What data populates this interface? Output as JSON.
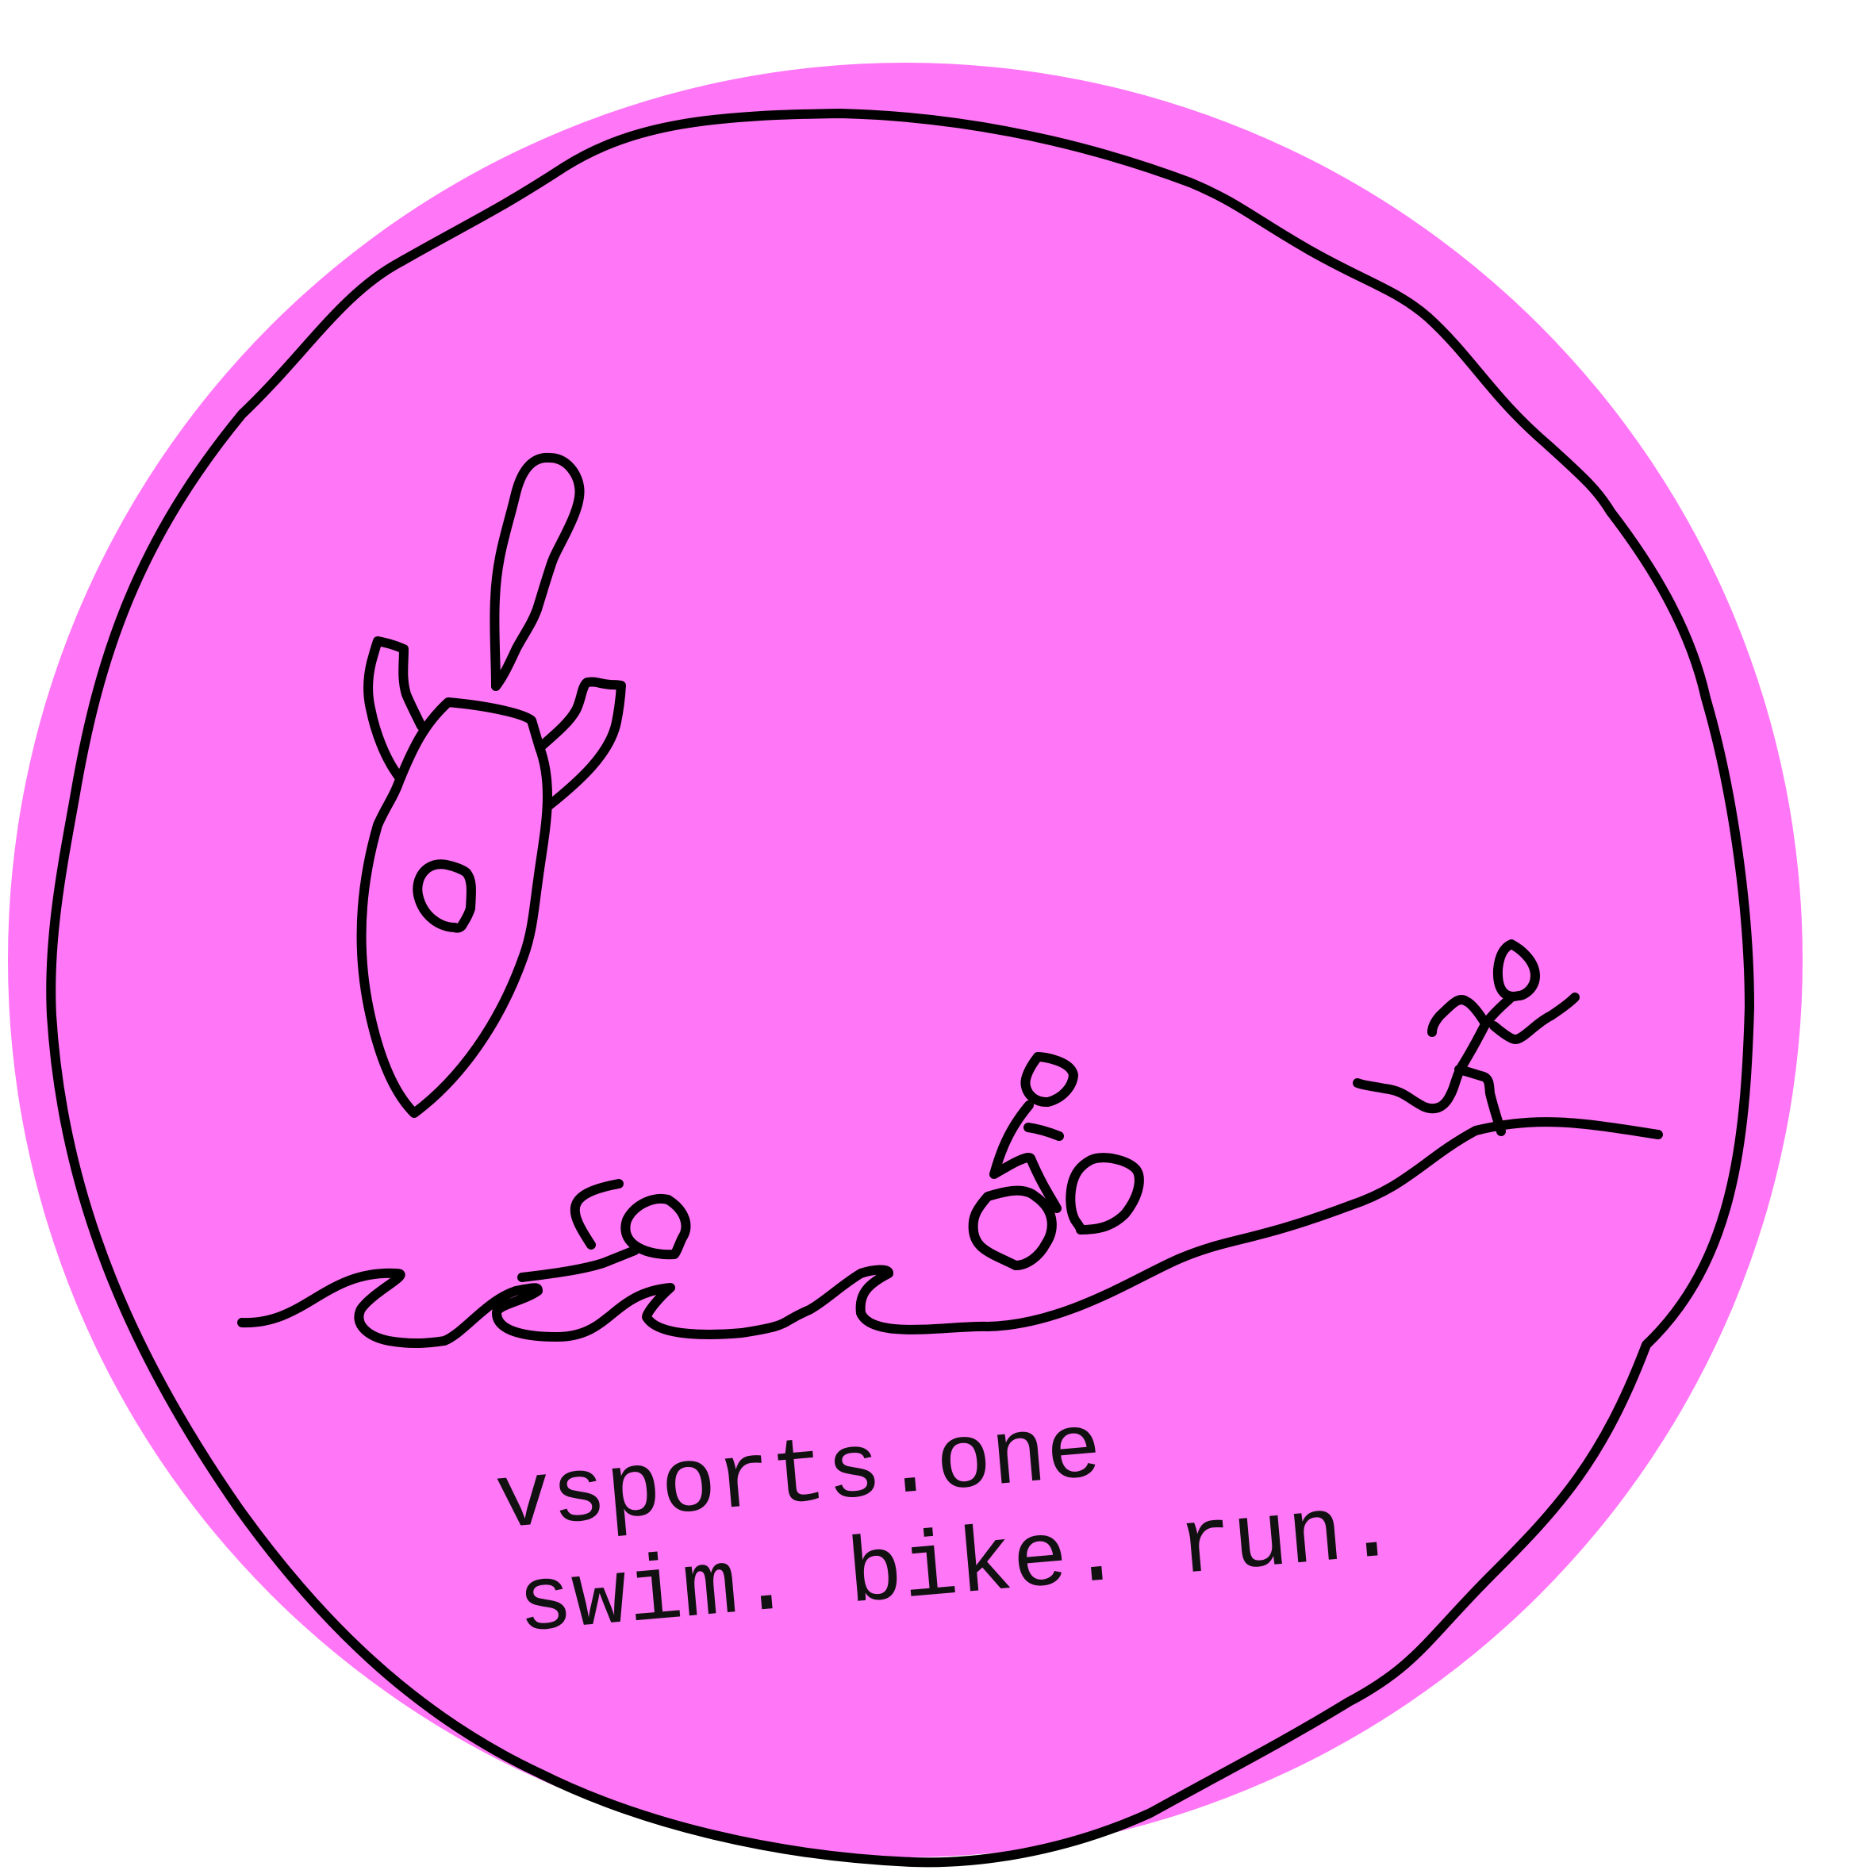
{
  "logo": {
    "domain_text": "vsports.one",
    "tagline": "swim. bike. run."
  },
  "colors": {
    "background": "#ffffff",
    "badge_fill": "#ff77f6",
    "ink": "#000000"
  },
  "icons": [
    "rocket-icon",
    "swimmer-icon",
    "cyclist-icon",
    "runner-icon",
    "wave-icon"
  ]
}
